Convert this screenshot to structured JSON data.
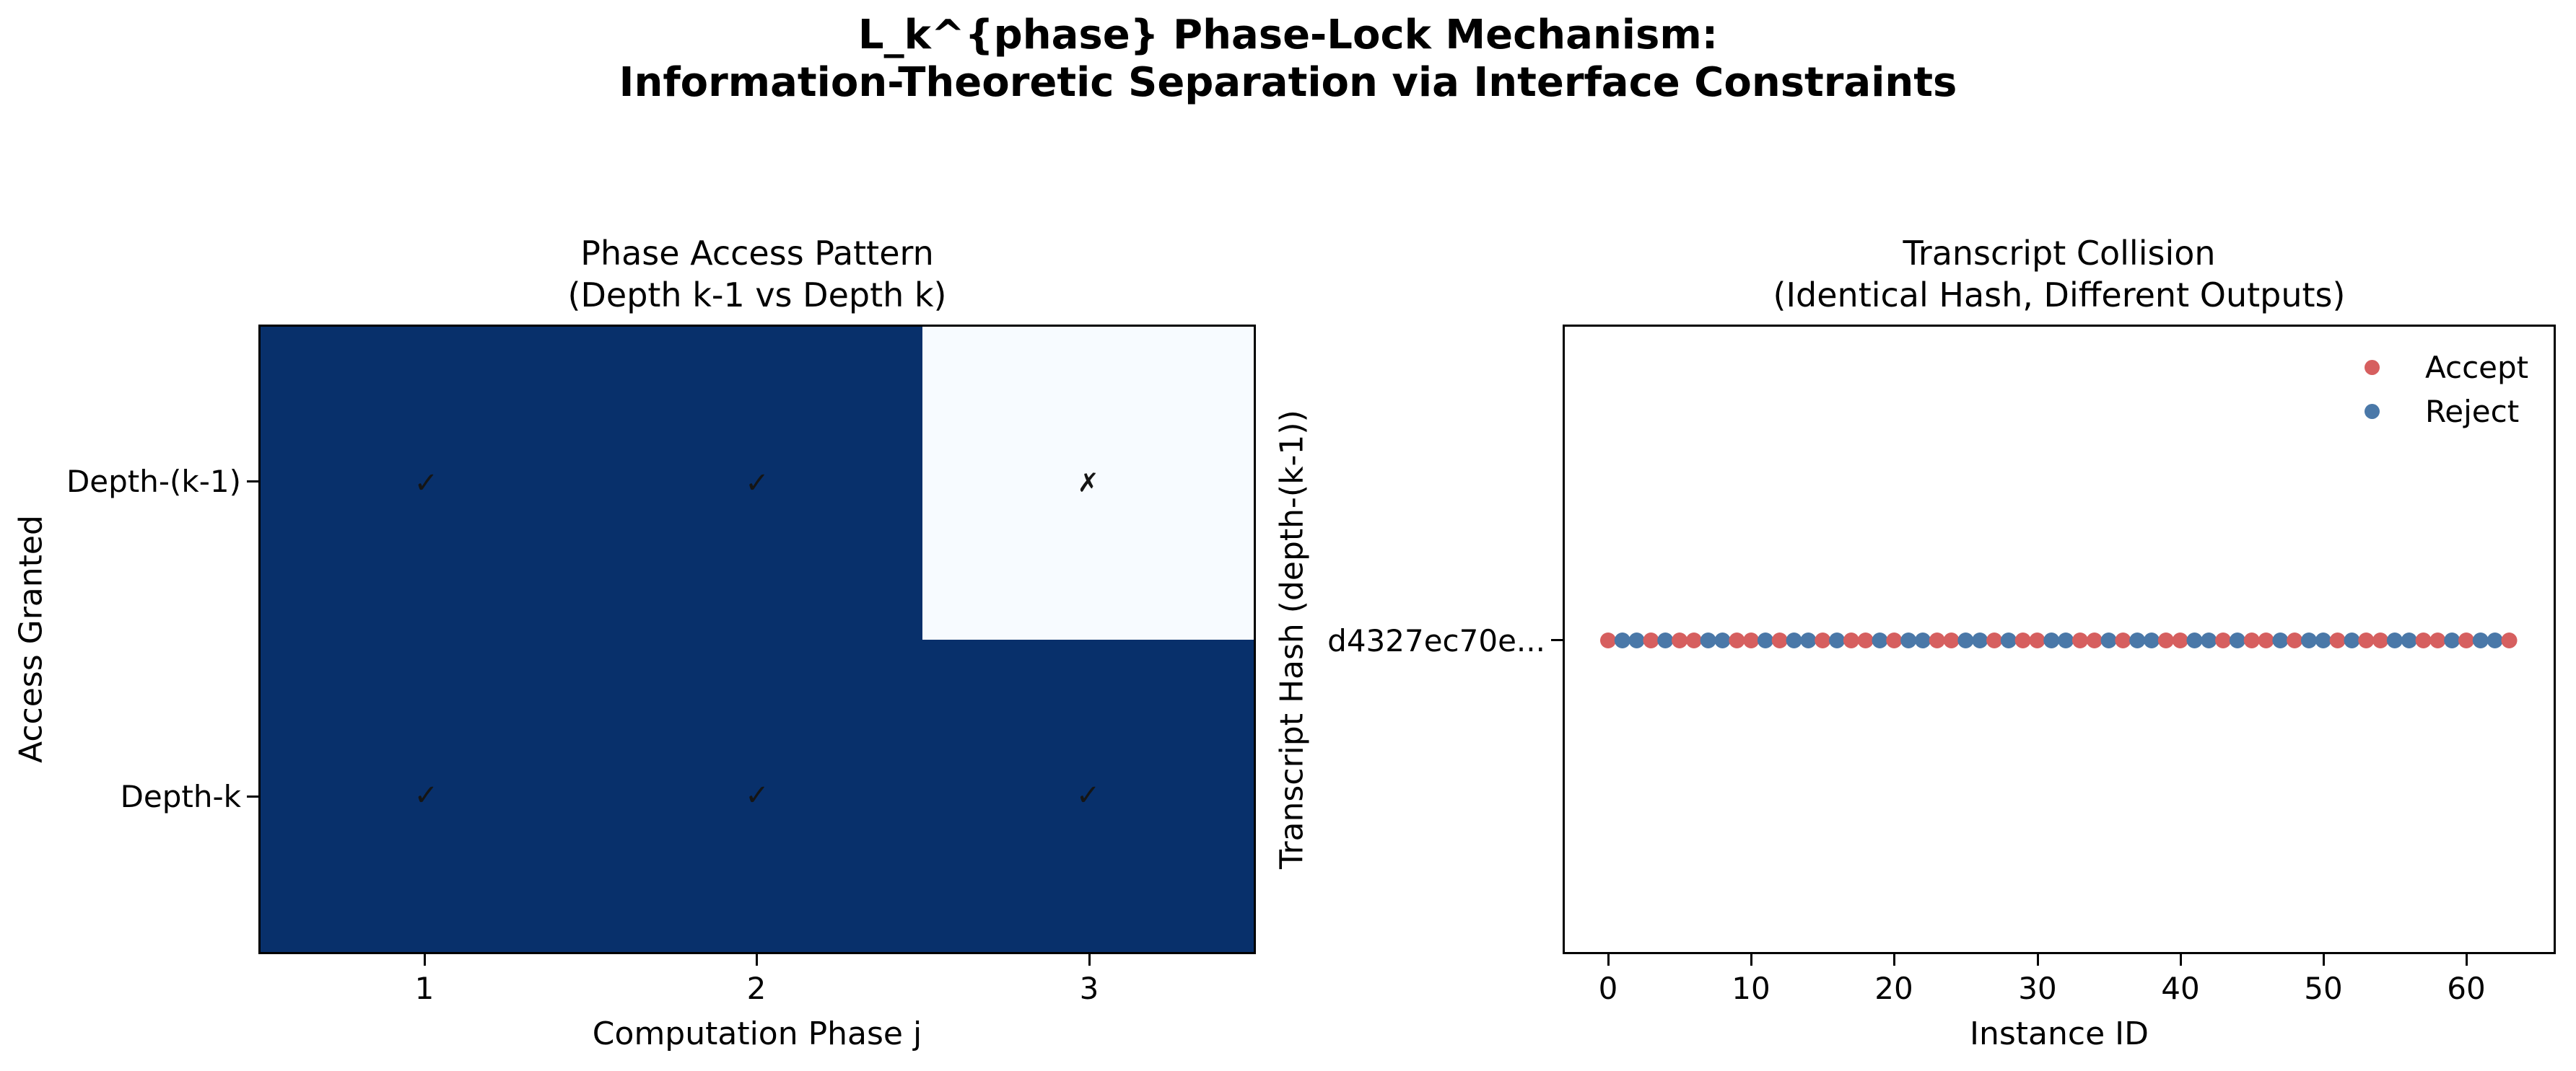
{
  "figure": {
    "title_line1": "L_k^{phase} Phase-Lock Mechanism:",
    "title_line2": "Information-Theoretic Separation via Interface Constraints"
  },
  "colors": {
    "accept_red": "#d65f5f",
    "reject_blue": "#4a78a8",
    "granted_navy": "#08306b",
    "denied_light": "#f7fbff"
  },
  "left_chart": {
    "title_line1": "Phase Access Pattern",
    "title_line2": "(Depth k-1 vs Depth k)",
    "xlabel": "Computation Phase j",
    "ylabel": "Access Granted",
    "x_ticks": [
      "1",
      "2",
      "3"
    ],
    "y_ticks": [
      "Depth-(k-1)",
      "Depth-k"
    ]
  },
  "right_chart": {
    "title_line1": "Transcript Collision",
    "title_line2": "(Identical Hash, Different Outputs)",
    "xlabel": "Instance ID",
    "ylabel": "Transcript Hash (depth-(k-1))",
    "y_tick": "d4327ec70e...",
    "x_ticks": [
      "0",
      "10",
      "20",
      "30",
      "40",
      "50",
      "60"
    ],
    "legend": [
      {
        "label": "Accept",
        "color_key": "accept_red"
      },
      {
        "label": "Reject",
        "color_key": "reject_blue"
      }
    ]
  },
  "chart_data": [
    {
      "type": "heatmap",
      "title": "Phase Access Pattern (Depth k-1 vs Depth k)",
      "xlabel": "Computation Phase j",
      "ylabel": "Access Granted",
      "categories_x": [
        "1",
        "2",
        "3"
      ],
      "categories_y": [
        "Depth-(k-1)",
        "Depth-k"
      ],
      "values": [
        [
          1,
          1,
          0
        ],
        [
          1,
          1,
          1
        ]
      ],
      "cell_marks": [
        [
          "✓",
          "✓",
          "✗"
        ],
        [
          "✓",
          "✓",
          "✓"
        ]
      ],
      "value_colors": {
        "granted_1": "#08306b",
        "denied_0": "#f7fbff"
      },
      "grid": false
    },
    {
      "type": "scatter",
      "title": "Transcript Collision (Identical Hash, Different Outputs)",
      "xlabel": "Instance ID",
      "ylabel": "Transcript Hash (depth-(k-1))",
      "xlim": [
        -3,
        66
      ],
      "x_ticks": [
        0,
        10,
        20,
        30,
        40,
        50,
        60
      ],
      "y_category": "d4327ec70e...",
      "n_points": 64,
      "sequence_key": "A=Accept(red), R=Reject(blue), drawn left to right at x=0..63, all at same y",
      "sequence": "ARRARAARRAARARRARAARARRAARRARAARRAARARRAARRARAARARRARAARRAARARRA",
      "series": [
        {
          "name": "Accept",
          "color": "#d65f5f",
          "x": [
            0,
            3,
            5,
            6,
            9,
            10,
            12,
            15,
            17,
            18,
            20,
            23,
            24,
            27,
            29,
            30,
            33,
            34,
            36,
            39,
            40,
            43,
            45,
            46,
            48,
            51,
            53,
            54,
            57,
            58,
            60,
            63
          ]
        },
        {
          "name": "Reject",
          "color": "#4a78a8",
          "x": [
            1,
            2,
            4,
            7,
            8,
            11,
            13,
            14,
            16,
            19,
            21,
            22,
            25,
            26,
            28,
            31,
            32,
            35,
            37,
            38,
            41,
            42,
            44,
            47,
            49,
            50,
            52,
            55,
            56,
            59,
            61,
            62
          ]
        }
      ],
      "legend_position": "upper right",
      "grid": false
    }
  ]
}
